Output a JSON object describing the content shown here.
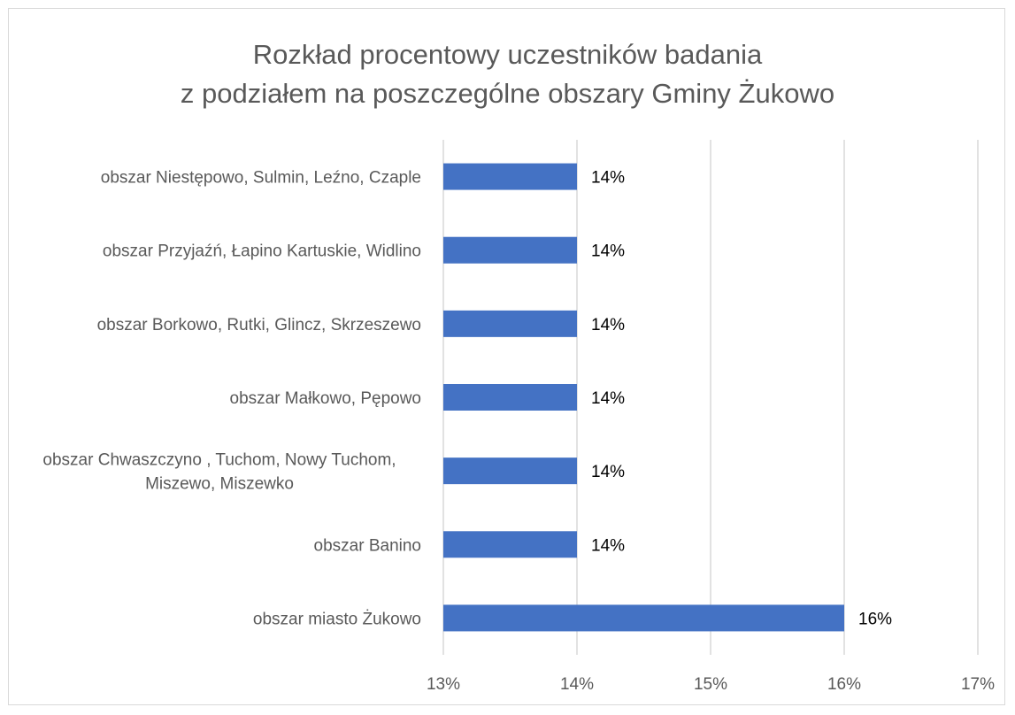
{
  "chart_data": {
    "type": "bar",
    "orientation": "horizontal",
    "title": "Rozkład procentowy uczestników badania\nz podziałem na poszczególne obszary Gminy Żukowo",
    "categories": [
      "obszar Niestępowo, Sulmin, Leźno, Czaple",
      "obszar Przyjaźń, Łapino Kartuskie, Widlino",
      "obszar Borkowo, Rutki, Glincz, Skrzeszewo",
      "obszar Małkowo, Pępowo",
      "obszar Chwaszczyno , Tuchom, Nowy Tuchom,\nMiszewo, Miszewko",
      "obszar Banino",
      "obszar miasto Żukowo"
    ],
    "values": [
      14,
      14,
      14,
      14,
      14,
      14,
      16
    ],
    "data_labels": [
      "14%",
      "14%",
      "14%",
      "14%",
      "14%",
      "14%",
      "16%"
    ],
    "xlim": [
      13,
      17
    ],
    "x_ticks": [
      "13%",
      "14%",
      "15%",
      "16%",
      "17%"
    ],
    "xlabel": "",
    "ylabel": "",
    "grid": "vertical",
    "legend": "none",
    "bar_color": "#4472c4"
  }
}
